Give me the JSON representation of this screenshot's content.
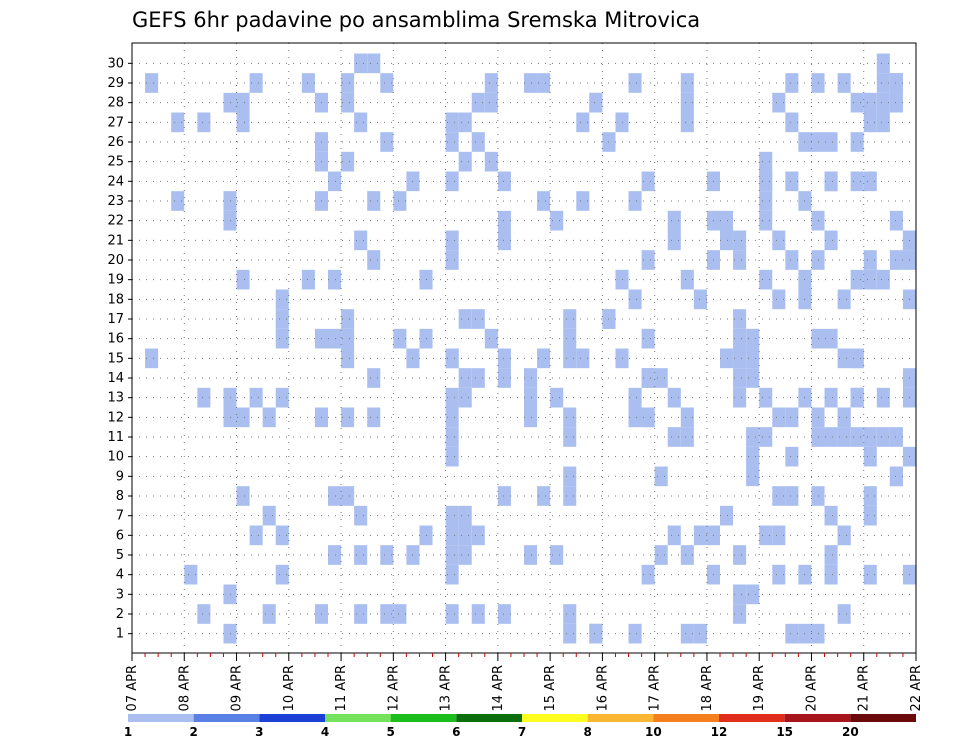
{
  "chart_data": {
    "type": "heatmap",
    "title": "GEFS 6hr padavine po ansamblima Sremska Mitrovica",
    "xlabel": "",
    "ylabel": "",
    "x_tick_labels": [
      "07 APR",
      "08 APR",
      "09 APR",
      "10 APR",
      "11 APR",
      "12 APR",
      "13 APR",
      "14 APR",
      "15 APR",
      "16 APR",
      "17 APR",
      "18 APR",
      "19 APR",
      "20 APR",
      "21 APR",
      "22 APR"
    ],
    "y_tick_labels": [
      "1",
      "2",
      "3",
      "4",
      "5",
      "6",
      "7",
      "8",
      "9",
      "10",
      "11",
      "12",
      "13",
      "14",
      "15",
      "16",
      "17",
      "18",
      "19",
      "20",
      "21",
      "22",
      "23",
      "24",
      "25",
      "26",
      "27",
      "28",
      "29",
      "30"
    ],
    "x_range": [
      "07 APR 00",
      "22 APR 00"
    ],
    "x_step_hours": 6,
    "y_range": [
      1,
      30
    ],
    "grid": true,
    "colorbar": {
      "boundaries": [
        "1",
        "2",
        "3",
        "4",
        "5",
        "6",
        "7",
        "8",
        "10",
        "12",
        "15",
        "20"
      ],
      "colors": [
        "#aabff0",
        "#5a80e6",
        "#1c3fd6",
        "#74e25a",
        "#1cbe1c",
        "#0d6e0d",
        "#ffff22",
        "#fbb733",
        "#f57f1c",
        "#e02d1c",
        "#a8141c",
        "#6a0a0a"
      ]
    },
    "series": [
      {
        "category": 1,
        "cells": [
          [
            1,
            29
          ],
          [
            1,
            15
          ],
          [
            3,
            23
          ],
          [
            4,
            4
          ],
          [
            3,
            27
          ],
          [
            5,
            2
          ],
          [
            5,
            27
          ],
          [
            5,
            13
          ],
          [
            7,
            1
          ],
          [
            7,
            28
          ],
          [
            7,
            13
          ],
          [
            7,
            12
          ],
          [
            7,
            22
          ],
          [
            7,
            23
          ],
          [
            7,
            3
          ],
          [
            8,
            28
          ],
          [
            8,
            8
          ],
          [
            8,
            27
          ],
          [
            8,
            12
          ],
          [
            8,
            19
          ],
          [
            9,
            6
          ],
          [
            9,
            13
          ],
          [
            9,
            29
          ],
          [
            10,
            7
          ],
          [
            10,
            12
          ],
          [
            10,
            2
          ],
          [
            11,
            4
          ],
          [
            11,
            6
          ],
          [
            11,
            13
          ],
          [
            11,
            17
          ],
          [
            11,
            16
          ],
          [
            11,
            18
          ],
          [
            13,
            19
          ],
          [
            13,
            29
          ],
          [
            14,
            2
          ],
          [
            14,
            25
          ],
          [
            14,
            23
          ],
          [
            14,
            28
          ],
          [
            14,
            16
          ],
          [
            14,
            12
          ],
          [
            14,
            26
          ],
          [
            15,
            16
          ],
          [
            15,
            19
          ],
          [
            15,
            24
          ],
          [
            15,
            8
          ],
          [
            15,
            5
          ],
          [
            16,
            28
          ],
          [
            16,
            25
          ],
          [
            16,
            15
          ],
          [
            16,
            17
          ],
          [
            16,
            12
          ],
          [
            16,
            29
          ],
          [
            16,
            8
          ],
          [
            16,
            16
          ],
          [
            17,
            7
          ],
          [
            17,
            2
          ],
          [
            17,
            27
          ],
          [
            17,
            21
          ],
          [
            17,
            5
          ],
          [
            17,
            30
          ],
          [
            18,
            14
          ],
          [
            18,
            20
          ],
          [
            18,
            30
          ],
          [
            18,
            23
          ],
          [
            18,
            12
          ],
          [
            19,
            2
          ],
          [
            19,
            5
          ],
          [
            19,
            26
          ],
          [
            19,
            29
          ],
          [
            20,
            2
          ],
          [
            20,
            23
          ],
          [
            20,
            16
          ],
          [
            21,
            5
          ],
          [
            21,
            15
          ],
          [
            21,
            24
          ],
          [
            22,
            6
          ],
          [
            22,
            16
          ],
          [
            22,
            19
          ],
          [
            24,
            13
          ],
          [
            24,
            4
          ],
          [
            24,
            2
          ],
          [
            24,
            7
          ],
          [
            24,
            26
          ],
          [
            24,
            20
          ],
          [
            24,
            24
          ],
          [
            24,
            15
          ],
          [
            24,
            15
          ],
          [
            24,
            6
          ],
          [
            24,
            5
          ],
          [
            24,
            11
          ],
          [
            24,
            21
          ],
          [
            24,
            10
          ],
          [
            24,
            27
          ],
          [
            24,
            12
          ],
          [
            25,
            7
          ],
          [
            25,
            25
          ],
          [
            25,
            5
          ],
          [
            25,
            13
          ],
          [
            25,
            6
          ],
          [
            25,
            27
          ],
          [
            25,
            14
          ],
          [
            25,
            17
          ],
          [
            26,
            2
          ],
          [
            26,
            6
          ],
          [
            26,
            14
          ],
          [
            26,
            28
          ],
          [
            26,
            17
          ],
          [
            26,
            26
          ],
          [
            27,
            16
          ],
          [
            27,
            28
          ],
          [
            27,
            29
          ],
          [
            27,
            25
          ],
          [
            28,
            2
          ],
          [
            28,
            14
          ],
          [
            28,
            21
          ],
          [
            28,
            24
          ],
          [
            28,
            8
          ],
          [
            28,
            22
          ],
          [
            28,
            15
          ],
          [
            30,
            5
          ],
          [
            30,
            13
          ],
          [
            30,
            29
          ],
          [
            30,
            12
          ],
          [
            30,
            14
          ],
          [
            31,
            8
          ],
          [
            31,
            15
          ],
          [
            31,
            29
          ],
          [
            31,
            23
          ],
          [
            32,
            13
          ],
          [
            32,
            5
          ],
          [
            32,
            22
          ],
          [
            33,
            9
          ],
          [
            33,
            1
          ],
          [
            33,
            12
          ],
          [
            33,
            11
          ],
          [
            33,
            8
          ],
          [
            33,
            15
          ],
          [
            33,
            16
          ],
          [
            33,
            2
          ],
          [
            33,
            17
          ],
          [
            34,
            23
          ],
          [
            34,
            27
          ],
          [
            34,
            15
          ],
          [
            35,
            1
          ],
          [
            35,
            1
          ],
          [
            35,
            28
          ],
          [
            35,
            28
          ],
          [
            36,
            17
          ],
          [
            36,
            26
          ],
          [
            36,
            17
          ],
          [
            37,
            15
          ],
          [
            37,
            27
          ],
          [
            37,
            19
          ],
          [
            38,
            13
          ],
          [
            38,
            12
          ],
          [
            38,
            29
          ],
          [
            38,
            23
          ],
          [
            38,
            18
          ],
          [
            38,
            1
          ],
          [
            39,
            12
          ],
          [
            39,
            14
          ],
          [
            39,
            12
          ],
          [
            39,
            16
          ],
          [
            39,
            4
          ],
          [
            39,
            20
          ],
          [
            39,
            14
          ],
          [
            39,
            24
          ],
          [
            40,
            5
          ],
          [
            40,
            9
          ],
          [
            40,
            14
          ],
          [
            41,
            13
          ],
          [
            41,
            21
          ],
          [
            41,
            22
          ],
          [
            41,
            11
          ],
          [
            41,
            6
          ],
          [
            42,
            5
          ],
          [
            42,
            11
          ],
          [
            42,
            27
          ],
          [
            42,
            28
          ],
          [
            42,
            12
          ],
          [
            42,
            19
          ],
          [
            42,
            1
          ],
          [
            42,
            29
          ],
          [
            43,
            1
          ],
          [
            43,
            6
          ],
          [
            43,
            18
          ],
          [
            44,
            22
          ],
          [
            44,
            4
          ],
          [
            44,
            6
          ],
          [
            44,
            20
          ],
          [
            44,
            24
          ],
          [
            45,
            15
          ],
          [
            45,
            22
          ],
          [
            45,
            21
          ],
          [
            45,
            7
          ],
          [
            46,
            20
          ],
          [
            46,
            15
          ],
          [
            46,
            17
          ],
          [
            46,
            2
          ],
          [
            46,
            16
          ],
          [
            46,
            13
          ],
          [
            46,
            14
          ],
          [
            46,
            3
          ],
          [
            46,
            21
          ],
          [
            46,
            5
          ],
          [
            47,
            3
          ],
          [
            47,
            16
          ],
          [
            47,
            15
          ],
          [
            47,
            10
          ],
          [
            47,
            11
          ],
          [
            47,
            9
          ],
          [
            47,
            14
          ],
          [
            48,
            25
          ],
          [
            48,
            23
          ],
          [
            48,
            22
          ],
          [
            48,
            19
          ],
          [
            48,
            11
          ],
          [
            48,
            6
          ],
          [
            48,
            13
          ],
          [
            48,
            24
          ],
          [
            48,
            24
          ],
          [
            49,
            28
          ],
          [
            49,
            18
          ],
          [
            49,
            4
          ],
          [
            49,
            21
          ],
          [
            49,
            8
          ],
          [
            49,
            6
          ],
          [
            49,
            12
          ],
          [
            50,
            8
          ],
          [
            50,
            27
          ],
          [
            50,
            1
          ],
          [
            50,
            29
          ],
          [
            50,
            12
          ],
          [
            50,
            20
          ],
          [
            50,
            24
          ],
          [
            50,
            10
          ],
          [
            51,
            13
          ],
          [
            51,
            1
          ],
          [
            51,
            23
          ],
          [
            51,
            18
          ],
          [
            51,
            4
          ],
          [
            51,
            26
          ],
          [
            51,
            19
          ],
          [
            52,
            1
          ],
          [
            52,
            12
          ],
          [
            52,
            26
          ],
          [
            52,
            20
          ],
          [
            52,
            8
          ],
          [
            52,
            22
          ],
          [
            52,
            16
          ],
          [
            52,
            11
          ],
          [
            52,
            29
          ],
          [
            53,
            24
          ],
          [
            53,
            7
          ],
          [
            53,
            13
          ],
          [
            53,
            21
          ],
          [
            53,
            4
          ],
          [
            53,
            16
          ],
          [
            53,
            5
          ],
          [
            53,
            11
          ],
          [
            53,
            26
          ],
          [
            53,
            24
          ],
          [
            54,
            2
          ],
          [
            54,
            6
          ],
          [
            54,
            12
          ],
          [
            54,
            29
          ],
          [
            54,
            18
          ],
          [
            54,
            15
          ],
          [
            54,
            6
          ],
          [
            54,
            11
          ],
          [
            54,
            12
          ],
          [
            55,
            15
          ],
          [
            55,
            28
          ],
          [
            55,
            24
          ],
          [
            55,
            26
          ],
          [
            55,
            19
          ],
          [
            55,
            13
          ],
          [
            55,
            11
          ],
          [
            55,
            13
          ],
          [
            55,
            15
          ],
          [
            56,
            7
          ],
          [
            56,
            10
          ],
          [
            56,
            24
          ],
          [
            56,
            20
          ],
          [
            56,
            27
          ],
          [
            56,
            19
          ],
          [
            56,
            4
          ],
          [
            56,
            28
          ],
          [
            56,
            11
          ],
          [
            56,
            8
          ],
          [
            57,
            19
          ],
          [
            57,
            11
          ],
          [
            57,
            13
          ],
          [
            57,
            28
          ],
          [
            57,
            29
          ],
          [
            57,
            30
          ],
          [
            57,
            27
          ],
          [
            58,
            29
          ],
          [
            58,
            20
          ],
          [
            58,
            28
          ],
          [
            58,
            29
          ],
          [
            58,
            22
          ],
          [
            58,
            11
          ],
          [
            58,
            9
          ],
          [
            58,
            9
          ],
          [
            59,
            13
          ],
          [
            59,
            18
          ],
          [
            59,
            21
          ],
          [
            59,
            4
          ],
          [
            59,
            21
          ],
          [
            59,
            14
          ],
          [
            59,
            10
          ],
          [
            59,
            20
          ]
        ]
      }
    ]
  }
}
